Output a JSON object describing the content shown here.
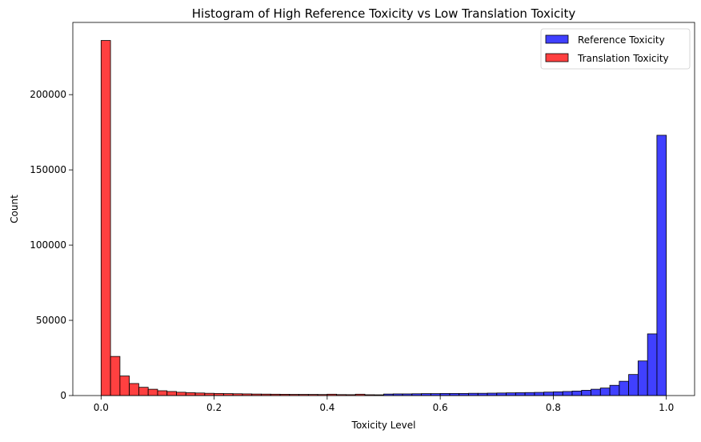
{
  "chart_data": {
    "type": "bar",
    "title": "Histogram of High Reference Toxicity vs Low Translation Toxicity",
    "xlabel": "Toxicity Level",
    "ylabel": "Count",
    "xlim": [
      -0.05,
      1.05
    ],
    "ylim": [
      0,
      248000
    ],
    "xticks": [
      0.0,
      0.2,
      0.4,
      0.6,
      0.8,
      1.0
    ],
    "xtick_labels": [
      "0.0",
      "0.2",
      "0.4",
      "0.6",
      "0.8",
      "1.0"
    ],
    "yticks": [
      0,
      50000,
      100000,
      150000,
      200000
    ],
    "ytick_labels": [
      "0",
      "50000",
      "100000",
      "150000",
      "200000"
    ],
    "grid": false,
    "legend_position": "top-right",
    "series": [
      {
        "name": "Reference Toxicity",
        "color": "#0000ff",
        "bin_starts": [
          0.5,
          0.5167,
          0.5333,
          0.55,
          0.5667,
          0.5833,
          0.6,
          0.6167,
          0.6333,
          0.65,
          0.6667,
          0.6833,
          0.7,
          0.7167,
          0.7333,
          0.75,
          0.7667,
          0.7833,
          0.8,
          0.8167,
          0.8333,
          0.85,
          0.8667,
          0.8833,
          0.9,
          0.9167,
          0.9333,
          0.95,
          0.9667,
          0.9833
        ],
        "bin_width": 0.01667,
        "counts": [
          1000,
          1100,
          1100,
          1200,
          1300,
          1300,
          1400,
          1400,
          1400,
          1500,
          1500,
          1600,
          1700,
          1800,
          1900,
          2000,
          2100,
          2300,
          2500,
          2700,
          3000,
          3500,
          4200,
          5000,
          6800,
          9500,
          14000,
          23000,
          41000,
          173000
        ]
      },
      {
        "name": "Translation Toxicity",
        "color": "#ff0000",
        "bin_starts": [
          0.0,
          0.0167,
          0.0333,
          0.05,
          0.0667,
          0.0833,
          0.1,
          0.1167,
          0.1333,
          0.15,
          0.1667,
          0.1833,
          0.2,
          0.2167,
          0.2333,
          0.25,
          0.2667,
          0.2833,
          0.3,
          0.3167,
          0.3333,
          0.35,
          0.3667,
          0.3833,
          0.4,
          0.4167,
          0.4333,
          0.45,
          0.4667,
          0.4833
        ],
        "bin_width": 0.01667,
        "counts": [
          236000,
          26000,
          13000,
          8000,
          5500,
          4200,
          3200,
          2700,
          2200,
          1900,
          1700,
          1500,
          1400,
          1300,
          1200,
          1100,
          1000,
          950,
          900,
          850,
          800,
          780,
          760,
          700,
          900,
          650,
          600,
          900,
          550,
          500
        ]
      }
    ]
  }
}
